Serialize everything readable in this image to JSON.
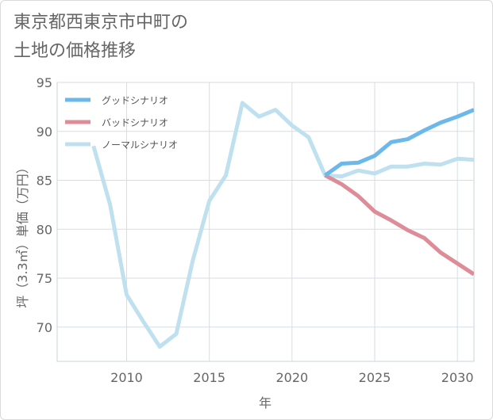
{
  "chart_data": {
    "type": "line",
    "title": "東京都西東京市中町の土地の価格推移",
    "title_lines": [
      "東京都西東京市中町の",
      "土地の価格推移"
    ],
    "xlabel": "年",
    "ylabel": "坪（3.3㎡）単価（万円）",
    "xlim": [
      2005.8,
      2031
    ],
    "ylim": [
      66.5,
      95
    ],
    "xticks": [
      2010,
      2015,
      2020,
      2025,
      2030
    ],
    "yticks": [
      70,
      75,
      80,
      85,
      90,
      95
    ],
    "grid": true,
    "legend_position": "top-left",
    "series": [
      {
        "name": "グッドシナリオ",
        "color": "#6cb8ea",
        "x": [
          2022,
          2023,
          2024,
          2025,
          2026,
          2027,
          2028,
          2029,
          2030,
          2031
        ],
        "values": [
          85.5,
          86.7,
          86.8,
          87.5,
          88.9,
          89.2,
          90.1,
          90.9,
          91.5,
          92.2
        ]
      },
      {
        "name": "バッドシナリオ",
        "color": "#de8c97",
        "x": [
          2022,
          2023,
          2024,
          2025,
          2026,
          2027,
          2028,
          2029,
          2030,
          2031
        ],
        "values": [
          85.5,
          84.6,
          83.4,
          81.8,
          80.9,
          79.9,
          79.1,
          77.6,
          76.5,
          75.4
        ]
      },
      {
        "name": "ノーマルシナリオ",
        "color": "#bfe0ee",
        "x": [
          2008,
          2009,
          2010,
          2011,
          2012,
          2013,
          2014,
          2015,
          2016,
          2017,
          2018,
          2019,
          2020,
          2021,
          2022,
          2023,
          2024,
          2025,
          2026,
          2027,
          2028,
          2029,
          2030,
          2031
        ],
        "values": [
          88.5,
          82.5,
          73.3,
          70.6,
          68.0,
          69.3,
          76.8,
          82.9,
          85.5,
          92.9,
          91.5,
          92.2,
          90.6,
          89.4,
          85.5,
          85.4,
          86.0,
          85.7,
          86.4,
          86.4,
          86.7,
          86.6,
          87.2,
          87.1
        ]
      }
    ]
  }
}
